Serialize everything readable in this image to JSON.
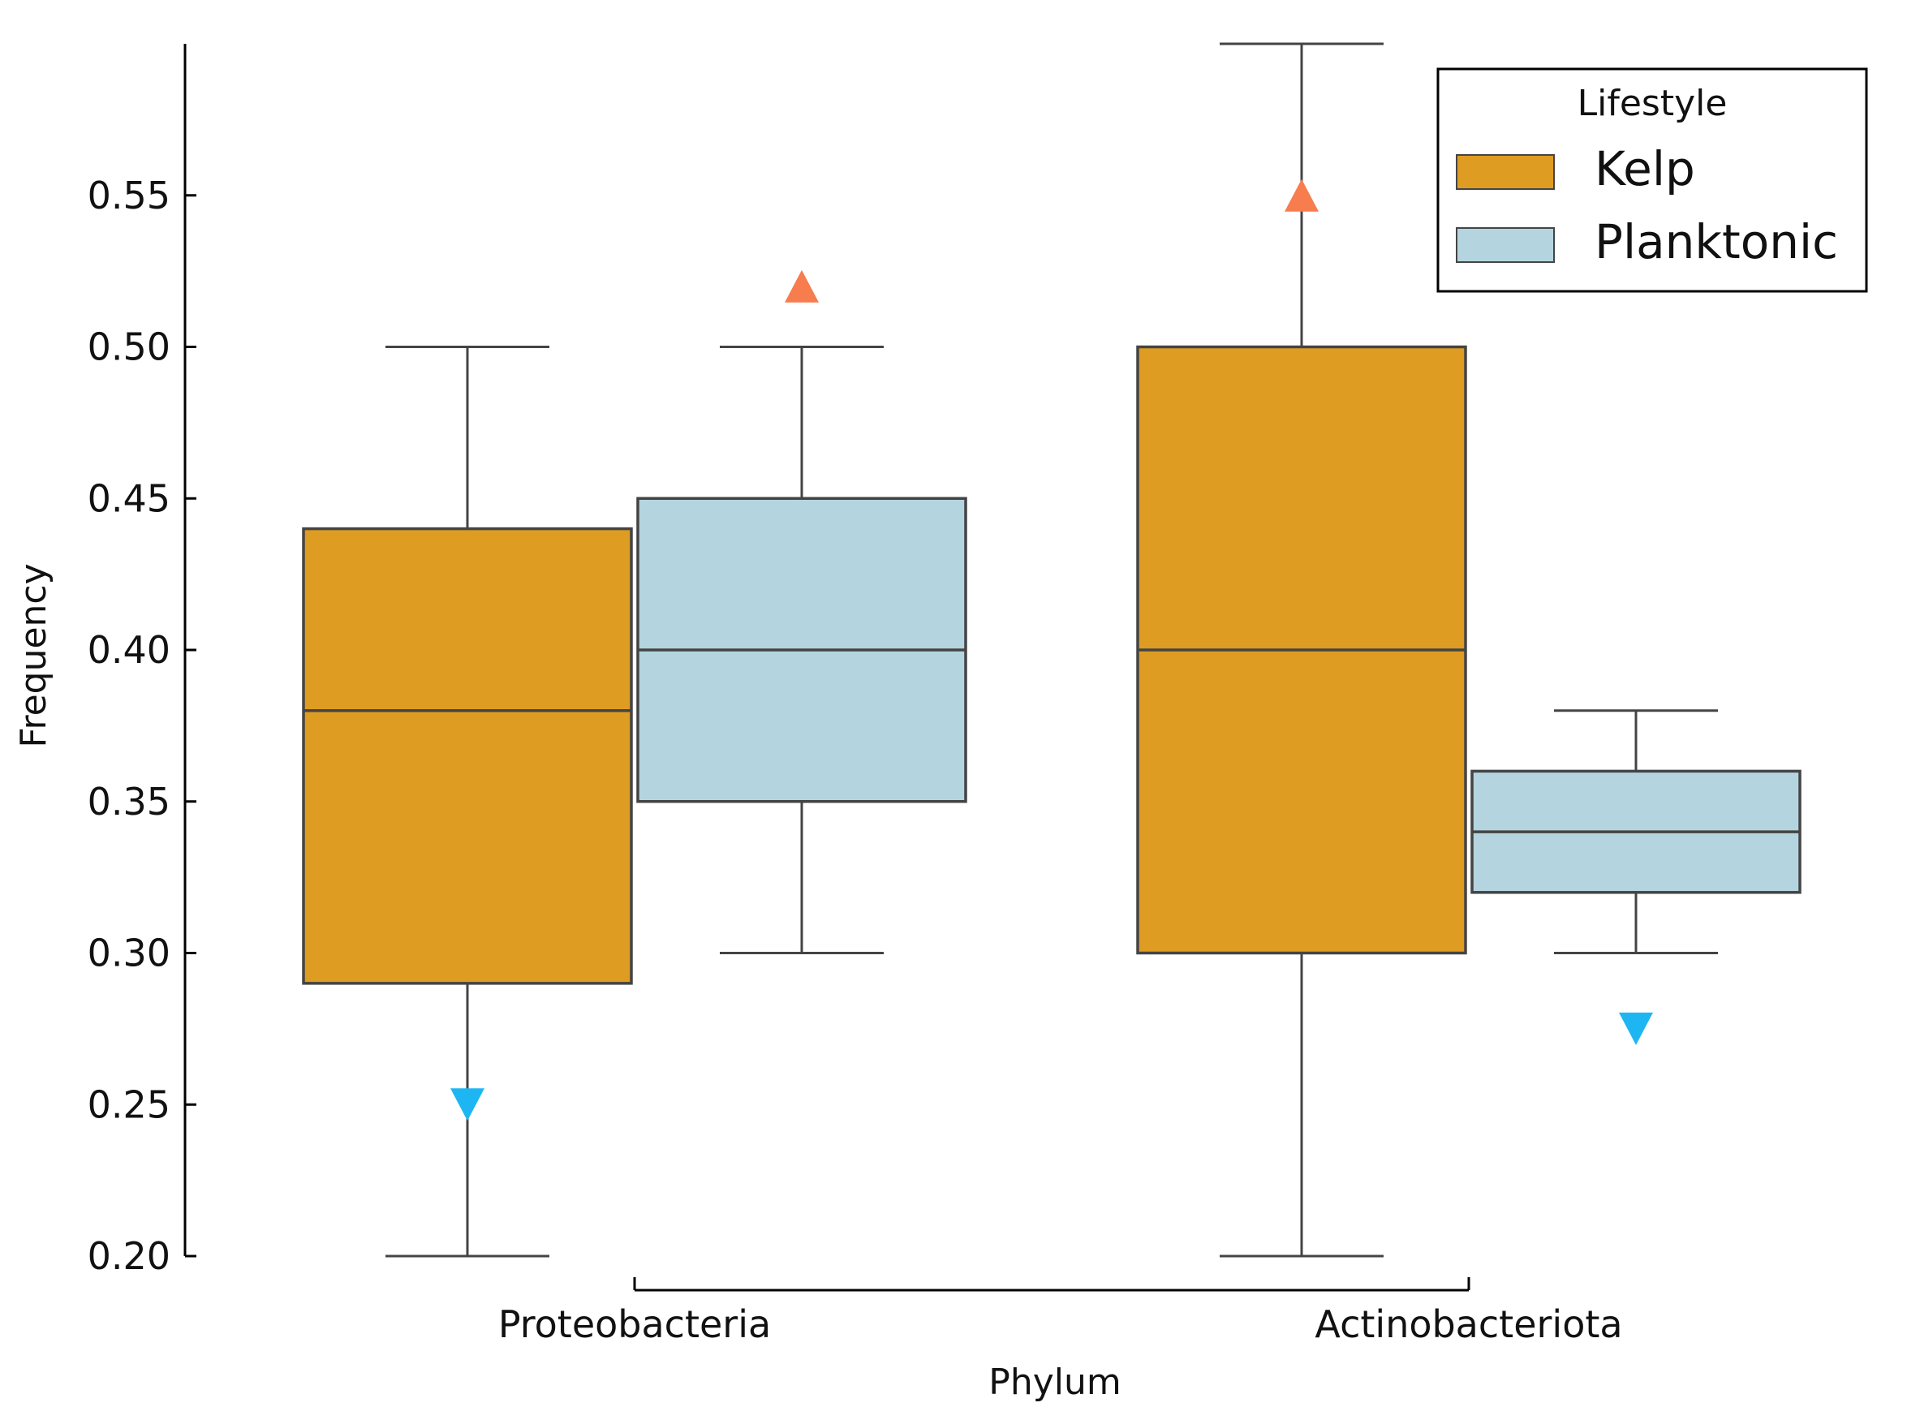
{
  "chart_data": {
    "type": "box",
    "xlabel": "Phylum",
    "ylabel": "Frequency",
    "ylim": [
      0.2,
      0.6
    ],
    "yticks": [
      0.2,
      0.25,
      0.3,
      0.35,
      0.4,
      0.45,
      0.5,
      0.55
    ],
    "ytick_labels": [
      "0.20",
      "0.25",
      "0.30",
      "0.35",
      "0.40",
      "0.45",
      "0.50",
      "0.55"
    ],
    "grid": false,
    "categories": [
      "Proteobacteria",
      "Actinobacteriota"
    ],
    "legend": {
      "title": "Lifestyle",
      "placement": "top-right"
    },
    "series": [
      {
        "name": "Kelp",
        "color": "#DF9C22",
        "boxes": [
          {
            "category": "Proteobacteria",
            "whisker_low": 0.2,
            "q1": 0.29,
            "median": 0.38,
            "q3": 0.44,
            "whisker_high": 0.5
          },
          {
            "category": "Actinobacteriota",
            "whisker_low": 0.2,
            "q1": 0.3,
            "median": 0.4,
            "q3": 0.5,
            "whisker_high": 0.6
          }
        ]
      },
      {
        "name": "Planktonic",
        "color": "#B4D5DF",
        "boxes": [
          {
            "category": "Proteobacteria",
            "whisker_low": 0.3,
            "q1": 0.35,
            "median": 0.4,
            "q3": 0.45,
            "whisker_high": 0.5
          },
          {
            "category": "Actinobacteriota",
            "whisker_low": 0.3,
            "q1": 0.32,
            "median": 0.34,
            "q3": 0.36,
            "whisker_high": 0.38
          }
        ]
      }
    ],
    "markers": [
      {
        "category": "Proteobacteria",
        "series": "Kelp",
        "value": 0.25,
        "shape": "triangle-down",
        "color": "#1EB6F2"
      },
      {
        "category": "Proteobacteria",
        "series": "Planktonic",
        "value": 0.52,
        "shape": "triangle-up",
        "color": "#F77C4E"
      },
      {
        "category": "Actinobacteriota",
        "series": "Kelp",
        "value": 0.55,
        "shape": "triangle-up",
        "color": "#F77C4E"
      },
      {
        "category": "Actinobacteriota",
        "series": "Planktonic",
        "value": 0.275,
        "shape": "triangle-down",
        "color": "#1EB6F2"
      }
    ],
    "line_color": "#444444"
  }
}
